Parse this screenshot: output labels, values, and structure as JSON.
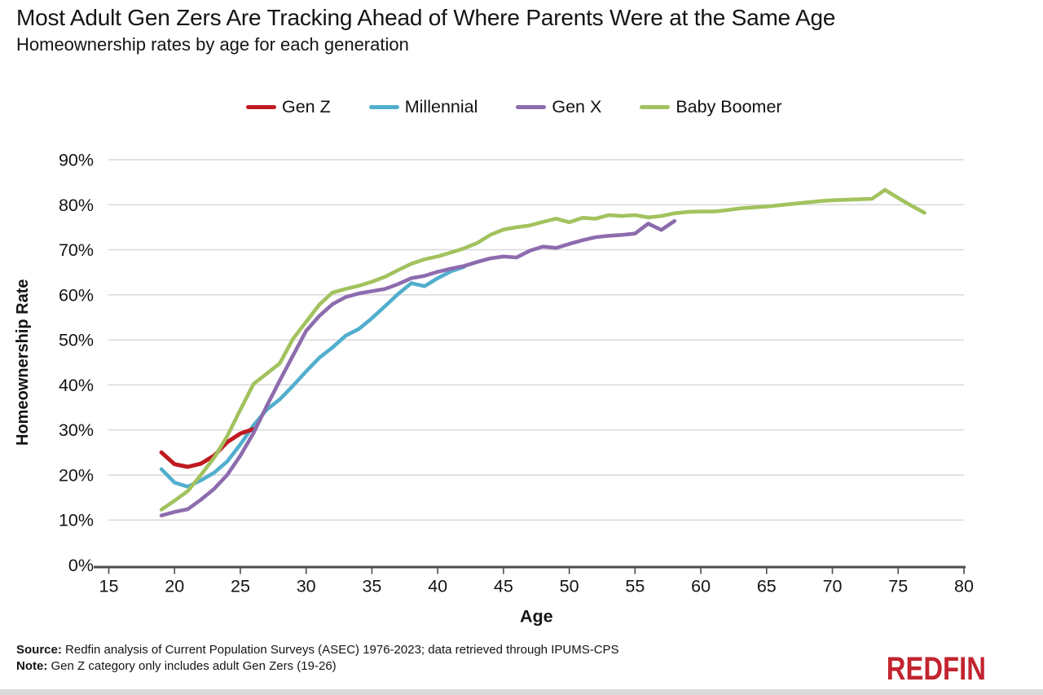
{
  "header": {
    "title": "Most Adult Gen Zers Are Tracking Ahead of Where Parents Were at the Same Age",
    "subtitle": "Homeownership rates by age for each generation"
  },
  "chart_data": {
    "type": "line",
    "title": "Most Adult Gen Zers Are Tracking Ahead of Where Parents Were at the Same Age",
    "xlabel": "Age",
    "ylabel": "Homeownership Rate",
    "xlim": [
      15,
      80
    ],
    "ylim": [
      0,
      90
    ],
    "x_ticks": [
      15,
      20,
      25,
      30,
      35,
      40,
      45,
      50,
      55,
      60,
      65,
      70,
      75,
      80
    ],
    "y_ticks": [
      0,
      10,
      20,
      30,
      40,
      50,
      60,
      70,
      80,
      90
    ],
    "y_tick_suffix": "%",
    "grid": "horizontal-only",
    "gridline_color": "#d9d9d9",
    "axis_color": "#4d4d4d",
    "legend_position": "top-center",
    "series": [
      {
        "name": "Gen Z",
        "color": "#bf1a20",
        "start_age": 19,
        "values": [
          25.0,
          22.4,
          21.8,
          22.5,
          24.3,
          27.3,
          29.2,
          30.2
        ]
      },
      {
        "name": "Millennial",
        "color": "#51aecd",
        "start_age": 19,
        "values": [
          21.3,
          18.3,
          17.4,
          18.8,
          20.5,
          23.0,
          26.8,
          31.0,
          34.5,
          36.8,
          39.8,
          43.0,
          46.0,
          48.3,
          50.9,
          52.4,
          54.8,
          57.5,
          60.2,
          62.6,
          61.9,
          63.7,
          65.2,
          66.2
        ]
      },
      {
        "name": "Gen X",
        "color": "#8d6cae",
        "start_age": 19,
        "values": [
          11.0,
          11.8,
          12.4,
          14.5,
          16.9,
          20.0,
          24.3,
          29.3,
          35.3,
          41.0,
          46.5,
          52.0,
          55.3,
          57.9,
          59.5,
          60.3,
          60.8,
          61.3,
          62.4,
          63.7,
          64.2,
          65.1,
          65.8,
          66.4,
          67.3,
          68.1,
          68.5,
          68.3,
          69.8,
          70.7,
          70.4,
          71.3,
          72.1,
          72.8,
          73.1,
          73.3,
          73.6,
          75.8,
          74.4,
          76.4
        ]
      },
      {
        "name": "Baby Boomer",
        "color": "#a2c25e",
        "start_age": 19,
        "values": [
          12.3,
          14.3,
          16.4,
          20.0,
          23.8,
          28.6,
          34.5,
          40.2,
          42.5,
          44.8,
          50.2,
          54.0,
          57.8,
          60.5,
          61.3,
          62.0,
          62.9,
          64.0,
          65.5,
          66.9,
          67.9,
          68.5,
          69.4,
          70.3,
          71.5,
          73.3,
          74.5,
          75.0,
          75.4,
          76.2,
          76.9,
          76.1,
          77.1,
          76.9,
          77.7,
          77.5,
          77.7,
          77.2,
          77.5,
          78.1,
          78.4,
          78.5,
          78.5,
          78.8,
          79.2,
          79.4,
          79.6,
          79.9,
          80.2,
          80.5,
          80.8,
          81.0,
          81.1,
          81.2,
          81.3,
          83.3,
          81.5,
          79.8,
          78.2
        ]
      }
    ]
  },
  "footer": {
    "source_label": "Source:",
    "source_text": " Redfin analysis of Current Population Surveys (ASEC) 1976-2023; data retrieved through IPUMS-CPS",
    "note_label": "Note:",
    "note_text": " Gen Z category only includes adult Gen Zers (19-26)",
    "brand": "REDFIN"
  }
}
